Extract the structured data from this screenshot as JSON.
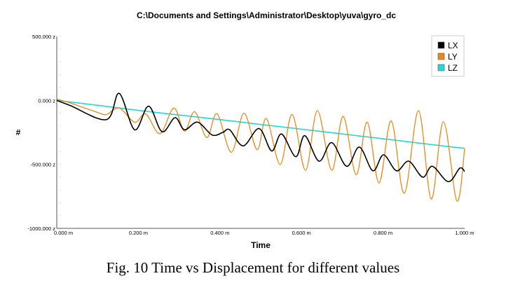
{
  "caption": "Fig. 10 Time vs Displacement for different values",
  "chart_data": {
    "type": "line",
    "title": "C:\\Documents and Settings\\Administrator\\Desktop\\yuva\\gyro_dc",
    "xlabel": "Time",
    "ylabel": "#",
    "xlim": [
      0,
      1.0
    ],
    "ylim": [
      -1000,
      500
    ],
    "x_ticks": [
      0,
      0.2,
      0.4,
      0.6,
      0.8,
      1.0
    ],
    "x_tick_labels": [
      "0.000 m",
      "0.200 m",
      "0.400 m",
      "0.600 m",
      "0.800 m",
      "1.000 m"
    ],
    "y_ticks": [
      500,
      0,
      -500,
      -1000
    ],
    "y_tick_labels": [
      "500.000 z",
      "0.000 z",
      "-500.000 z",
      "-1000.000 z"
    ],
    "legend_position": "top-right",
    "series": [
      {
        "name": "LX",
        "color": "#000000",
        "points": [
          [
            0.0,
            0
          ],
          [
            0.033,
            -40
          ],
          [
            0.122,
            -150
          ],
          [
            0.153,
            55
          ],
          [
            0.191,
            -230
          ],
          [
            0.225,
            -45
          ],
          [
            0.258,
            -245
          ],
          [
            0.29,
            -135
          ],
          [
            0.313,
            -230
          ],
          [
            0.345,
            -170
          ],
          [
            0.381,
            -270
          ],
          [
            0.407,
            -250
          ],
          [
            0.424,
            -230
          ],
          [
            0.457,
            -355
          ],
          [
            0.496,
            -220
          ],
          [
            0.527,
            -395
          ],
          [
            0.551,
            -262
          ],
          [
            0.586,
            -440
          ],
          [
            0.608,
            -275
          ],
          [
            0.643,
            -475
          ],
          [
            0.674,
            -330
          ],
          [
            0.711,
            -515
          ],
          [
            0.742,
            -365
          ],
          [
            0.775,
            -550
          ],
          [
            0.801,
            -425
          ],
          [
            0.833,
            -550
          ],
          [
            0.863,
            -475
          ],
          [
            0.897,
            -600
          ],
          [
            0.921,
            -515
          ],
          [
            0.96,
            -635
          ],
          [
            0.988,
            -530
          ],
          [
            1.0,
            -555
          ]
        ]
      },
      {
        "name": "LY",
        "color": "#E8891A",
        "points": [
          [
            0.0,
            10
          ],
          [
            0.033,
            -20
          ],
          [
            0.101,
            -95
          ],
          [
            0.122,
            -110
          ],
          [
            0.153,
            -60
          ],
          [
            0.191,
            -170
          ],
          [
            0.218,
            -105
          ],
          [
            0.253,
            -260
          ],
          [
            0.287,
            -60
          ],
          [
            0.313,
            -240
          ],
          [
            0.338,
            -88
          ],
          [
            0.368,
            -290
          ],
          [
            0.393,
            -105
          ],
          [
            0.428,
            -405
          ],
          [
            0.459,
            -100
          ],
          [
            0.491,
            -385
          ],
          [
            0.514,
            -142
          ],
          [
            0.548,
            -500
          ],
          [
            0.577,
            -110
          ],
          [
            0.61,
            -545
          ],
          [
            0.639,
            -80
          ],
          [
            0.674,
            -545
          ],
          [
            0.702,
            -125
          ],
          [
            0.734,
            -580
          ],
          [
            0.761,
            -170
          ],
          [
            0.79,
            -645
          ],
          [
            0.82,
            -160
          ],
          [
            0.852,
            -725
          ],
          [
            0.887,
            -80
          ],
          [
            0.918,
            -770
          ],
          [
            0.948,
            -165
          ],
          [
            0.981,
            -787
          ],
          [
            1.0,
            -375
          ]
        ]
      },
      {
        "name": "LZ",
        "color": "#22D8D8",
        "points": [
          [
            0.0,
            0
          ],
          [
            0.1,
            -38
          ],
          [
            0.2,
            -78
          ],
          [
            0.3,
            -114
          ],
          [
            0.4,
            -150
          ],
          [
            0.5,
            -188
          ],
          [
            0.6,
            -225
          ],
          [
            0.7,
            -262
          ],
          [
            0.8,
            -300
          ],
          [
            0.9,
            -338
          ],
          [
            1.0,
            -375
          ]
        ]
      }
    ]
  }
}
